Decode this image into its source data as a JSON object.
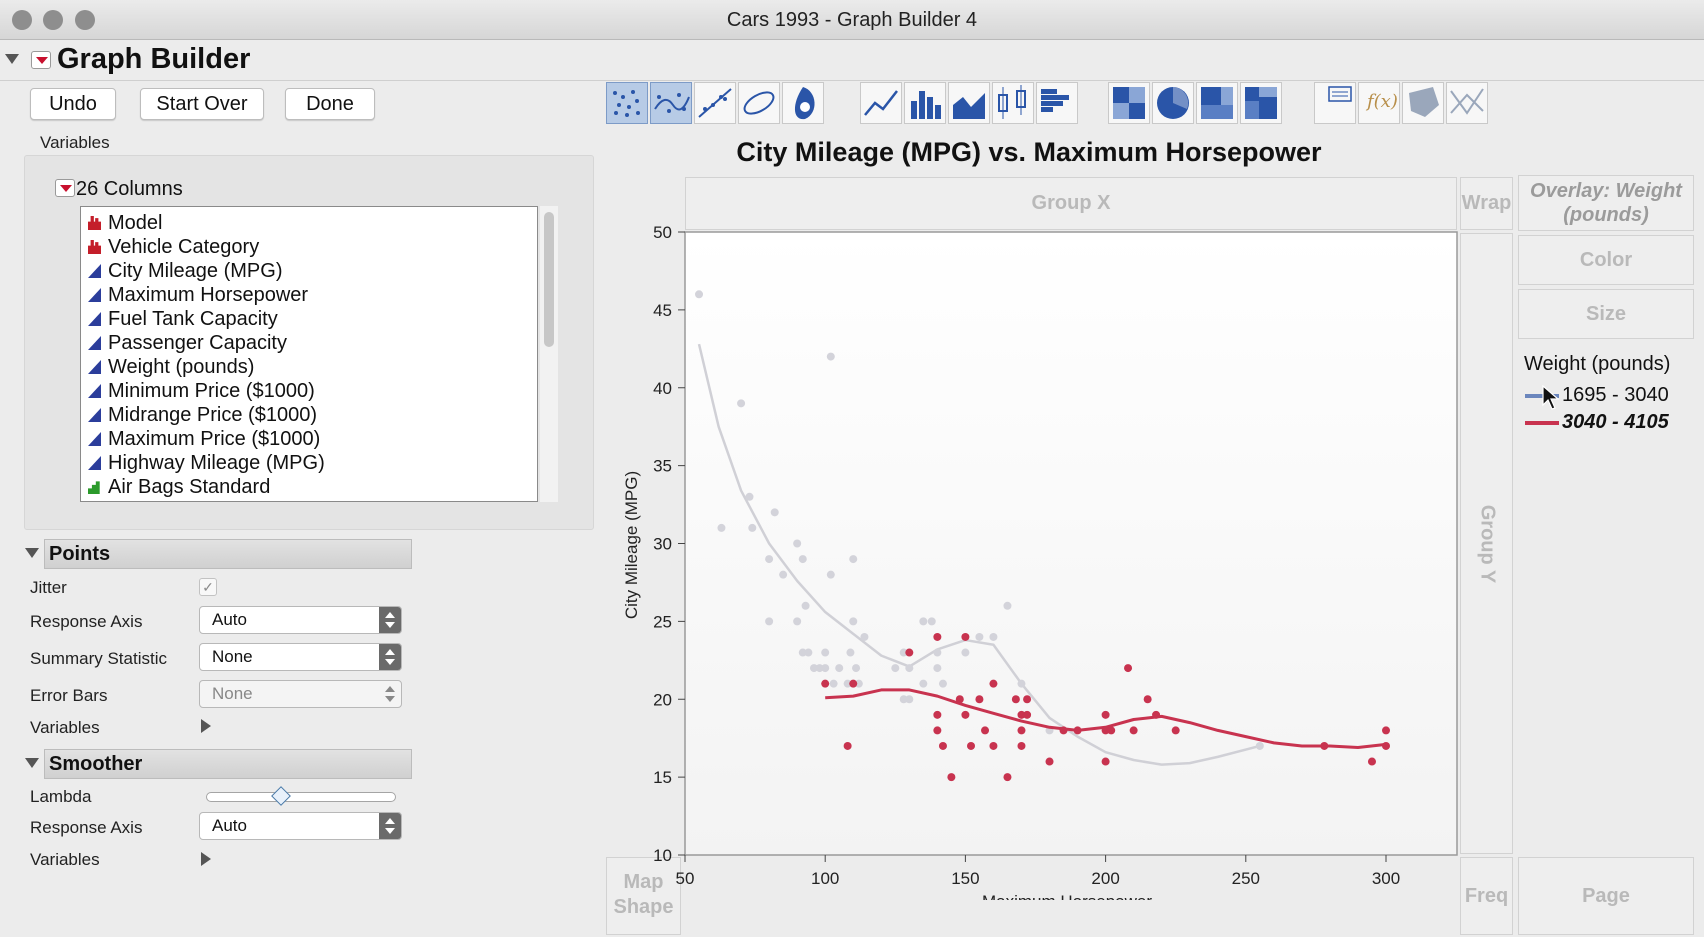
{
  "window": {
    "title": "Cars 1993 - Graph Builder 4"
  },
  "header": {
    "title": "Graph Builder"
  },
  "toolbar": {
    "undo": "Undo",
    "start_over": "Start Over",
    "done": "Done"
  },
  "variables_label": "Variables",
  "columns": {
    "header": "26 Columns",
    "items": [
      {
        "label": "Model",
        "type": "nominal"
      },
      {
        "label": "Vehicle Category",
        "type": "nominal"
      },
      {
        "label": "City Mileage (MPG)",
        "type": "continuous"
      },
      {
        "label": "Maximum Horsepower",
        "type": "continuous"
      },
      {
        "label": "Fuel Tank Capacity",
        "type": "continuous"
      },
      {
        "label": "Passenger Capacity",
        "type": "continuous"
      },
      {
        "label": "Weight (pounds)",
        "type": "continuous"
      },
      {
        "label": "Minimum Price ($1000)",
        "type": "continuous"
      },
      {
        "label": "Midrange Price ($1000)",
        "type": "continuous"
      },
      {
        "label": "Maximum Price ($1000)",
        "type": "continuous"
      },
      {
        "label": "Highway Mileage (MPG)",
        "type": "continuous"
      },
      {
        "label": "Air Bags Standard",
        "type": "ordinal"
      }
    ]
  },
  "points": {
    "title": "Points",
    "jitter_label": "Jitter",
    "jitter_checked": true,
    "response_axis_label": "Response Axis",
    "response_axis_value": "Auto",
    "summary_label": "Summary Statistic",
    "summary_value": "None",
    "error_bars_label": "Error Bars",
    "error_bars_value": "None",
    "variables_label": "Variables"
  },
  "smoother": {
    "title": "Smoother",
    "lambda_label": "Lambda",
    "lambda_value": 0.4,
    "response_axis_label": "Response Axis",
    "response_axis_value": "Auto",
    "variables_label": "Variables"
  },
  "zones": {
    "group_x": "Group X",
    "wrap": "Wrap",
    "overlay": "Overlay: Weight (pounds)",
    "color": "Color",
    "size": "Size",
    "group_y": "Group Y",
    "map_shape": "Map Shape",
    "freq": "Freq",
    "page": "Page"
  },
  "legend": {
    "title": "Weight (pounds)",
    "items": [
      {
        "label": "1695 - 3040",
        "color": "#6b86bd"
      },
      {
        "label": "3040 - 4105",
        "color": "#c8334f"
      }
    ]
  },
  "chart_data": {
    "type": "scatter",
    "title": "City Mileage (MPG) vs. Maximum Horsepower",
    "xlabel": "Maximum Horsepower",
    "ylabel": "City Mileage (MPG)",
    "xlim": [
      50,
      310
    ],
    "ylim": [
      10,
      50
    ],
    "xticks": [
      50,
      100,
      150,
      200,
      250,
      300
    ],
    "yticks": [
      10,
      15,
      20,
      25,
      30,
      35,
      40,
      45,
      50
    ],
    "series": [
      {
        "name": "1695 - 3040",
        "color": "#d3d3da",
        "points": [
          [
            55,
            46
          ],
          [
            63,
            31
          ],
          [
            70,
            39
          ],
          [
            73,
            33
          ],
          [
            74,
            31
          ],
          [
            80,
            25
          ],
          [
            80,
            29
          ],
          [
            82,
            32
          ],
          [
            85,
            28
          ],
          [
            90,
            25
          ],
          [
            90,
            30
          ],
          [
            92,
            29
          ],
          [
            92,
            23
          ],
          [
            93,
            26
          ],
          [
            94,
            23
          ],
          [
            96,
            22
          ],
          [
            98,
            22
          ],
          [
            100,
            23
          ],
          [
            100,
            22
          ],
          [
            102,
            42
          ],
          [
            102,
            28
          ],
          [
            103,
            21
          ],
          [
            105,
            22
          ],
          [
            108,
            21
          ],
          [
            109,
            23
          ],
          [
            110,
            25
          ],
          [
            110,
            29
          ],
          [
            111,
            22
          ],
          [
            112,
            21
          ],
          [
            114,
            24
          ],
          [
            125,
            22
          ],
          [
            128,
            23
          ],
          [
            128,
            20
          ],
          [
            130,
            20
          ],
          [
            130,
            22
          ],
          [
            135,
            21
          ],
          [
            135,
            25
          ],
          [
            138,
            25
          ],
          [
            140,
            23
          ],
          [
            140,
            22
          ],
          [
            142,
            21
          ],
          [
            150,
            23
          ],
          [
            155,
            24
          ],
          [
            160,
            24
          ],
          [
            165,
            26
          ],
          [
            170,
            21
          ],
          [
            180,
            18
          ],
          [
            255,
            17
          ]
        ],
        "smoother": [
          [
            55,
            42.8
          ],
          [
            62,
            37.5
          ],
          [
            70,
            33.4
          ],
          [
            80,
            30.0
          ],
          [
            90,
            27.6
          ],
          [
            100,
            25.6
          ],
          [
            110,
            24.2
          ],
          [
            120,
            22.8
          ],
          [
            130,
            22.1
          ],
          [
            140,
            23.2
          ],
          [
            150,
            23.8
          ],
          [
            160,
            23.5
          ],
          [
            170,
            21.0
          ],
          [
            180,
            18.8
          ],
          [
            190,
            17.6
          ],
          [
            200,
            16.6
          ],
          [
            210,
            16.1
          ],
          [
            220,
            15.8
          ],
          [
            230,
            15.9
          ],
          [
            240,
            16.3
          ],
          [
            255,
            17.0
          ]
        ]
      },
      {
        "name": "3040 - 4105",
        "color": "#c8334f",
        "points": [
          [
            100,
            21
          ],
          [
            108,
            17
          ],
          [
            110,
            21
          ],
          [
            130,
            23
          ],
          [
            140,
            24
          ],
          [
            140,
            18
          ],
          [
            140,
            19
          ],
          [
            142,
            17
          ],
          [
            145,
            15
          ],
          [
            148,
            20
          ],
          [
            150,
            24
          ],
          [
            150,
            19
          ],
          [
            152,
            17
          ],
          [
            155,
            20
          ],
          [
            157,
            18
          ],
          [
            160,
            21
          ],
          [
            160,
            17
          ],
          [
            165,
            15
          ],
          [
            168,
            20
          ],
          [
            170,
            19
          ],
          [
            170,
            18
          ],
          [
            170,
            17
          ],
          [
            172,
            20
          ],
          [
            172,
            19
          ],
          [
            180,
            16
          ],
          [
            185,
            18
          ],
          [
            190,
            18
          ],
          [
            200,
            16
          ],
          [
            200,
            18
          ],
          [
            200,
            19
          ],
          [
            202,
            18
          ],
          [
            208,
            22
          ],
          [
            210,
            18
          ],
          [
            215,
            20
          ],
          [
            218,
            19
          ],
          [
            225,
            18
          ],
          [
            278,
            17
          ],
          [
            295,
            16
          ],
          [
            300,
            18
          ],
          [
            300,
            17
          ]
        ],
        "smoother": [
          [
            100,
            20.1
          ],
          [
            110,
            20.2
          ],
          [
            120,
            20.6
          ],
          [
            130,
            20.6
          ],
          [
            140,
            20.2
          ],
          [
            150,
            19.6
          ],
          [
            160,
            19.1
          ],
          [
            170,
            18.6
          ],
          [
            180,
            18.2
          ],
          [
            190,
            18.0
          ],
          [
            200,
            18.2
          ],
          [
            210,
            18.7
          ],
          [
            220,
            18.9
          ],
          [
            230,
            18.5
          ],
          [
            240,
            18.0
          ],
          [
            250,
            17.6
          ],
          [
            260,
            17.2
          ],
          [
            270,
            17.0
          ],
          [
            280,
            17.0
          ],
          [
            290,
            16.9
          ],
          [
            300,
            17.1
          ]
        ]
      }
    ],
    "legend_position": "right",
    "grid": false
  }
}
